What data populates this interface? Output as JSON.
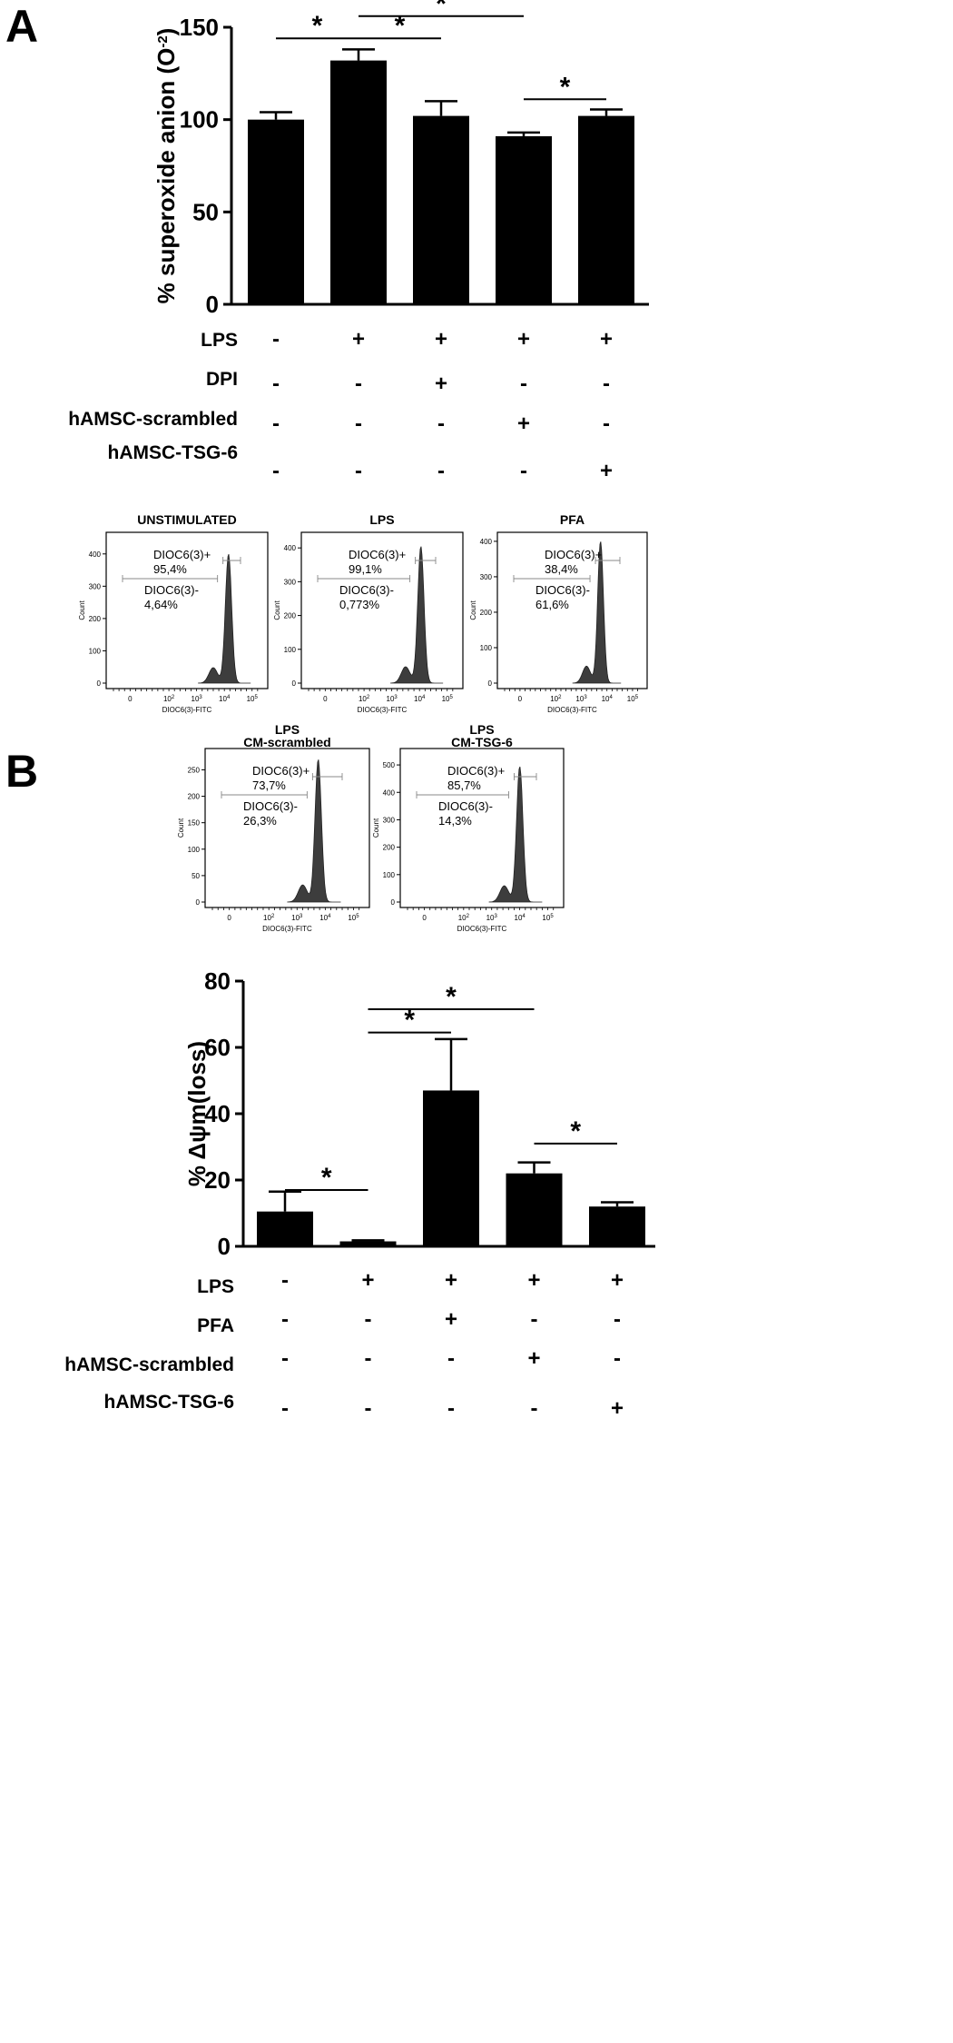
{
  "panels": {
    "A": "A",
    "B": "B"
  },
  "chart_data": [
    {
      "type": "bar",
      "panel": "A",
      "ylabel_main": "% superoxide anion (O",
      "ylabel_sup": "-2",
      "ylabel_close": ")",
      "ylim": [
        0,
        150
      ],
      "yticks": [
        0,
        50,
        100,
        150
      ],
      "categories": [
        "1",
        "2",
        "3",
        "4",
        "5"
      ],
      "values": [
        100,
        132,
        102,
        91,
        102
      ],
      "errors": [
        4,
        6,
        8,
        2,
        3.5
      ],
      "conditions": [
        {
          "name": "LPS",
          "signs": [
            "-",
            "+",
            "+",
            "+",
            "+"
          ]
        },
        {
          "name": "DPI",
          "signs": [
            "-",
            "-",
            "+",
            "-",
            "-"
          ]
        },
        {
          "name": "hAMSC-scrambled",
          "signs": [
            "-",
            "-",
            "-",
            "+",
            "-"
          ]
        },
        {
          "name": "hAMSC-TSG-6",
          "signs": [
            "-",
            "-",
            "-",
            "-",
            "+"
          ]
        }
      ],
      "significance": [
        {
          "from": 0,
          "to": 1,
          "y": 144,
          "label": "*"
        },
        {
          "from": 1,
          "to": 2,
          "y": 144,
          "label": "*"
        },
        {
          "from": 1,
          "to": 3,
          "y": 156,
          "label": "*"
        },
        {
          "from": 3,
          "to": 4,
          "y": 111,
          "label": "*"
        }
      ]
    },
    {
      "type": "histogram",
      "panel": "B",
      "xlabel": "DIOC6(3)-FITC",
      "ylabel": "Count",
      "xticks": [
        "0",
        "10",
        "10",
        "10",
        "10"
      ],
      "xtick_exp": [
        "",
        "2",
        "3",
        "4",
        "5"
      ],
      "histograms": [
        {
          "title": "UNSTIMULATED",
          "title2": "",
          "pos_label": "DIOC6(3)+",
          "pos_pct": "95,4%",
          "neg_label": "DIOC6(3)-",
          "neg_pct": "4,64%",
          "ymax": 450,
          "yticks": [
            "0",
            "100",
            "200",
            "300",
            "400"
          ],
          "peak": 4.15,
          "peak_height": 400
        },
        {
          "title": "LPS",
          "title2": "",
          "pos_label": "DIOC6(3)+",
          "pos_pct": "99,1%",
          "neg_label": "DIOC6(3)-",
          "neg_pct": "0,773%",
          "ymax": 430,
          "yticks": [
            "0",
            "100",
            "200",
            "300",
            "400"
          ],
          "peak": 4.05,
          "peak_height": 405
        },
        {
          "title": "PFA",
          "title2": "",
          "pos_label": "DIOC6(3)+",
          "pos_pct": "38,4%",
          "neg_label": "DIOC6(3)-",
          "neg_pct": "61,6%",
          "ymax": 410,
          "yticks": [
            "0",
            "100",
            "200",
            "300",
            "400"
          ],
          "peak": 3.75,
          "peak_height": 400
        },
        {
          "title": "LPS",
          "title2": "CM-scrambled",
          "pos_label": "DIOC6(3)+",
          "pos_pct": "73,7%",
          "neg_label": "DIOC6(3)-",
          "neg_pct": "26,3%",
          "ymax": 280,
          "yticks": [
            "0",
            "50",
            "100",
            "150",
            "200",
            "250"
          ],
          "peak": 3.75,
          "peak_height": 270
        },
        {
          "title": "LPS",
          "title2": "CM-TSG-6",
          "pos_label": "DIOC6(3)+",
          "pos_pct": "85,7%",
          "neg_label": "DIOC6(3)-",
          "neg_pct": "14,3%",
          "ymax": 540,
          "yticks": [
            "0",
            "100",
            "200",
            "300",
            "400",
            "500"
          ],
          "peak": 4.0,
          "peak_height": 495
        }
      ]
    },
    {
      "type": "bar",
      "panel": "B",
      "ylabel": "% Δψm(loss)",
      "ylim": [
        0,
        80
      ],
      "yticks": [
        0,
        20,
        40,
        60,
        80
      ],
      "categories": [
        "1",
        "2",
        "3",
        "4",
        "5"
      ],
      "values": [
        10.5,
        1.5,
        47,
        22,
        12
      ],
      "errors": [
        6,
        0.3,
        15.5,
        3.3,
        1.3
      ],
      "conditions": [
        {
          "name": "LPS",
          "signs": [
            "-",
            "+",
            "+",
            "+",
            "+"
          ]
        },
        {
          "name": "PFA",
          "signs": [
            "-",
            "-",
            "+",
            "-",
            "-"
          ]
        },
        {
          "name": "hAMSC-scrambled",
          "signs": [
            "-",
            "-",
            "-",
            "+",
            "-"
          ]
        },
        {
          "name": "hAMSC-TSG-6",
          "signs": [
            "-",
            "-",
            "-",
            "-",
            "+"
          ]
        }
      ],
      "significance": [
        {
          "from": 0,
          "to": 1,
          "y": 17,
          "label": "*"
        },
        {
          "from": 1,
          "to": 2,
          "y": 64.5,
          "label": "*"
        },
        {
          "from": 1,
          "to": 3,
          "y": 71.5,
          "label": "*"
        },
        {
          "from": 3,
          "to": 4,
          "y": 31,
          "label": "*"
        }
      ]
    }
  ]
}
